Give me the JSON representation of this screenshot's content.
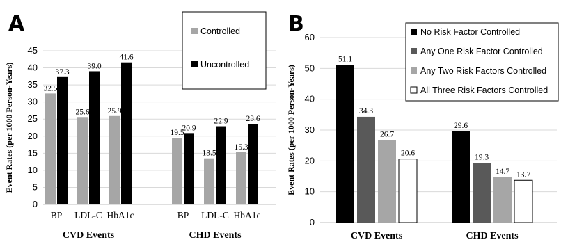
{
  "chart_data": [
    {
      "panel": "A",
      "type": "bar",
      "ylabel": "Event Rates (per 1000 Person-Years)",
      "ylim": [
        0,
        45
      ],
      "yticks": [
        0,
        5,
        10,
        15,
        20,
        25,
        30,
        35,
        40,
        45
      ],
      "groups": [
        {
          "label": "CVD Events",
          "categories": [
            "BP",
            "LDL-C",
            "HbA1c"
          ]
        },
        {
          "label": "CHD Events",
          "categories": [
            "BP",
            "LDL-C",
            "HbA1c"
          ]
        }
      ],
      "series": [
        {
          "name": "Controlled",
          "color": "#a6a6a6",
          "values": [
            32.5,
            25.6,
            25.9,
            19.5,
            13.5,
            15.3
          ],
          "labels": [
            "32.5",
            "25.6",
            "25.9",
            "19.5",
            "13.5",
            "15.3"
          ]
        },
        {
          "name": "Uncontrolled",
          "color": "#000000",
          "values": [
            37.3,
            39.0,
            41.6,
            20.9,
            22.9,
            23.6
          ],
          "labels": [
            "37.3",
            "39.0",
            "41.6",
            "20.9",
            "22.9",
            "23.6"
          ]
        }
      ],
      "legend": "top-right (boxed)",
      "grid": "horizontal"
    },
    {
      "panel": "B",
      "type": "bar",
      "ylabel": "Event Rates (per 1000 Person-Years)",
      "ylim": [
        0,
        60
      ],
      "yticks": [
        0,
        10,
        20,
        30,
        40,
        50,
        60
      ],
      "categories": [
        "CVD Events",
        "CHD Events"
      ],
      "series": [
        {
          "name": "No Risk Factor Controlled",
          "color": "#000000",
          "values": [
            51.1,
            29.6
          ],
          "labels": [
            "51.1",
            "29.6"
          ]
        },
        {
          "name": "Any One Risk Factor Controlled",
          "color": "#595959",
          "values": [
            34.3,
            19.3
          ],
          "labels": [
            "34.3",
            "19.3"
          ]
        },
        {
          "name": "Any Two Risk Factors Controlled",
          "color": "#a6a6a6",
          "values": [
            26.7,
            14.7
          ],
          "labels": [
            "26.7",
            "14.7"
          ]
        },
        {
          "name": "All Three Risk Factors Controlled",
          "color": "#ffffff",
          "values": [
            20.6,
            13.7
          ],
          "labels": [
            "20.6",
            "13.7"
          ]
        }
      ],
      "legend": "top-right (boxed)",
      "grid": "horizontal"
    }
  ]
}
